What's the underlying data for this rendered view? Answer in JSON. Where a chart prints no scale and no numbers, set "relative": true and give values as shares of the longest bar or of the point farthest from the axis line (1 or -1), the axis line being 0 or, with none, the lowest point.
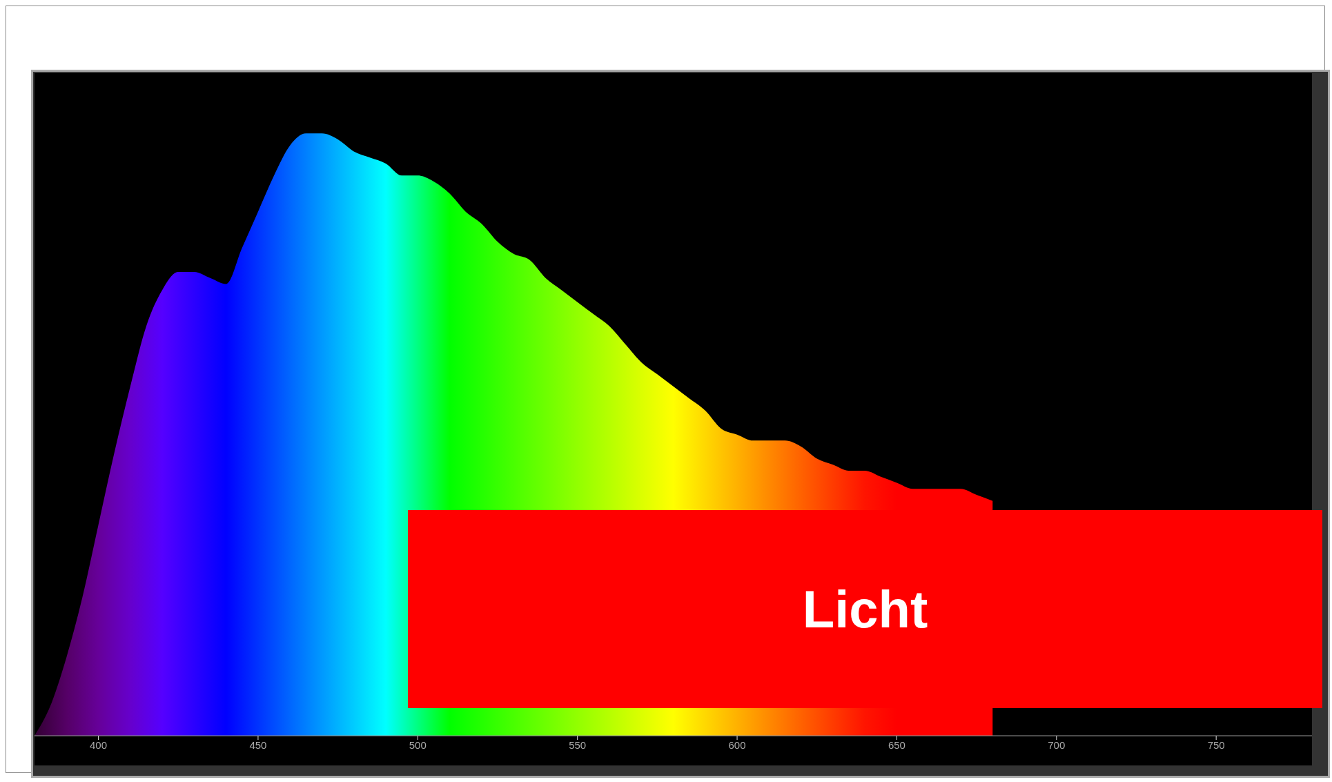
{
  "chart_data": {
    "type": "area",
    "relative": true,
    "xlim": [
      380,
      780
    ],
    "xticks": [
      400,
      450,
      500,
      550,
      600,
      650,
      700,
      750
    ],
    "annotations": [
      "Licht"
    ],
    "x": [
      380,
      385,
      390,
      395,
      400,
      405,
      410,
      415,
      420,
      425,
      430,
      435,
      440,
      445,
      450,
      455,
      460,
      465,
      470,
      475,
      480,
      485,
      490,
      495,
      500,
      505,
      510,
      515,
      520,
      525,
      530,
      535,
      540,
      545,
      550,
      555,
      560,
      565,
      570,
      575,
      580,
      585,
      590,
      595,
      600,
      605,
      610,
      615,
      620,
      625,
      630,
      635,
      640,
      645,
      650,
      655,
      660,
      665,
      670,
      675,
      680
    ],
    "values": [
      0,
      0.05,
      0.13,
      0.23,
      0.35,
      0.47,
      0.58,
      0.68,
      0.74,
      0.77,
      0.77,
      0.76,
      0.75,
      0.81,
      0.87,
      0.93,
      0.98,
      1,
      1,
      0.99,
      0.97,
      0.96,
      0.95,
      0.93,
      0.93,
      0.92,
      0.9,
      0.87,
      0.85,
      0.82,
      0.8,
      0.79,
      0.76,
      0.74,
      0.72,
      0.7,
      0.68,
      0.65,
      0.62,
      0.6,
      0.58,
      0.56,
      0.54,
      0.51,
      0.5,
      0.49,
      0.49,
      0.49,
      0.48,
      0.46,
      0.45,
      0.44,
      0.44,
      0.43,
      0.42,
      0.41,
      0.41,
      0.41,
      0.41,
      0.4,
      0.39
    ]
  }
}
